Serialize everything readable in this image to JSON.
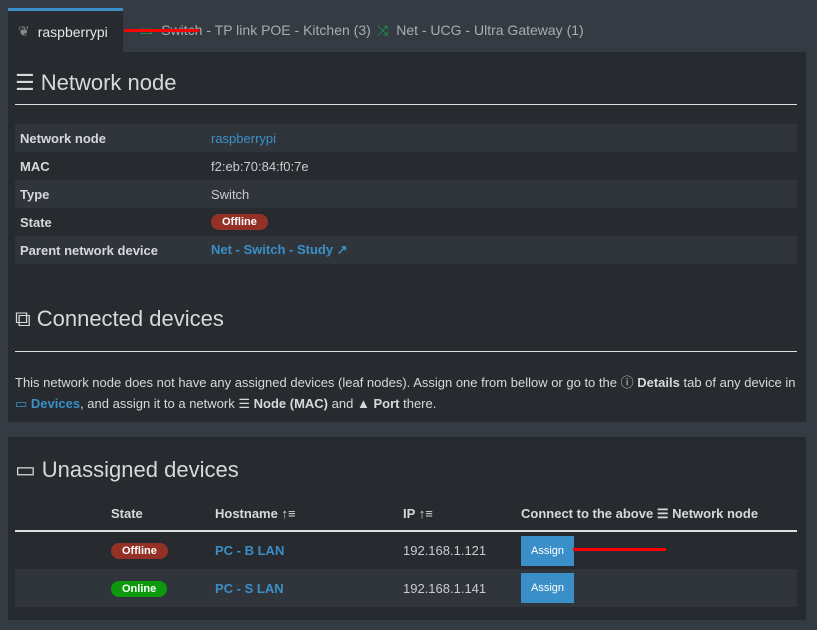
{
  "tabs": [
    {
      "label": "raspberrypi",
      "icon": "raspberry-icon",
      "active": true
    },
    {
      "label": "Switch - TP link POE - Kitchen (3)",
      "icon": "switch-icon"
    },
    {
      "label": "Net - UCG - Ultra Gateway (1)",
      "icon": "shuffle-icon"
    }
  ],
  "node": {
    "title": "Network node",
    "rows": [
      {
        "k": "Network node",
        "v": "raspberrypi"
      },
      {
        "k": "MAC",
        "v": "f2:eb:70:84:f0:7e"
      },
      {
        "k": "Type",
        "v": "Switch"
      },
      {
        "k": "State",
        "v": "Offline"
      },
      {
        "k": "Parent network device",
        "v": "Net - Switch - Study"
      }
    ]
  },
  "connected": {
    "title": "Connected devices",
    "p1": "This network node does not have any assigned devices (leaf nodes). Assign one from bellow or go to the",
    "details": "Details",
    "p2": "tab of any device in",
    "devices": "Devices",
    "p3": ", and assign it to a network",
    "node": "Node (MAC)",
    "p4": "and",
    "port": "Port",
    "p5": "there."
  },
  "unassigned": {
    "title": "Unassigned devices",
    "headers": [
      "State",
      "Hostname",
      "IP",
      "Connect to the above",
      "Network node"
    ],
    "rows": [
      {
        "state": "Offline",
        "host": "PC - B LAN",
        "ip": "192.168.1.121",
        "action": "Assign"
      },
      {
        "state": "Online",
        "host": "PC - S LAN",
        "ip": "192.168.1.141",
        "action": "Assign"
      }
    ]
  },
  "colors": {
    "accent": "#3a8fc8",
    "offline": "#943126",
    "online": "#0b9a0b"
  }
}
